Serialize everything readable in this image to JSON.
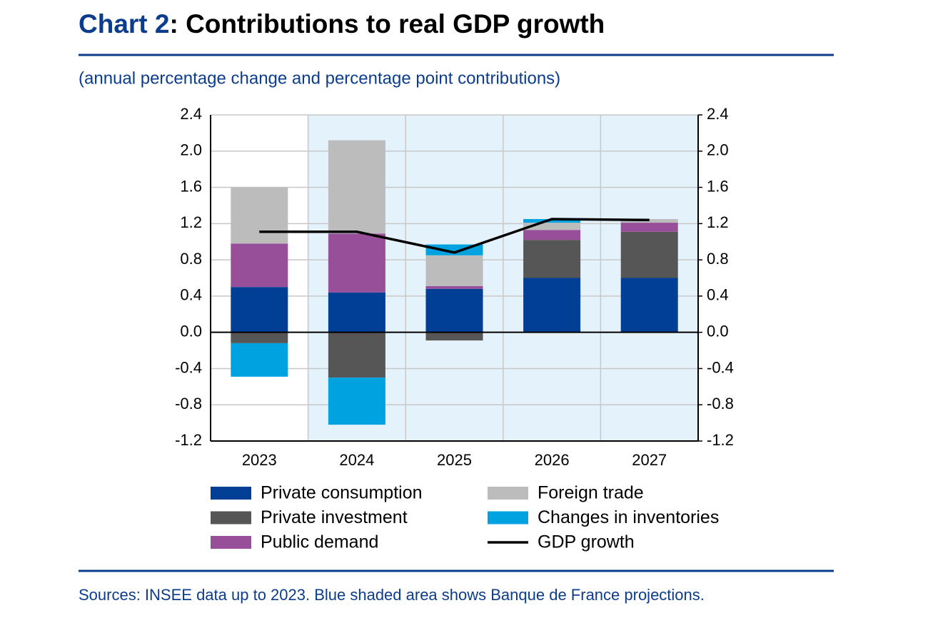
{
  "chart_data": {
    "type": "bar",
    "title_prefix": "Chart 2",
    "title": ": Contributions to real GDP growth",
    "subtitle": "(annual percentage change and percentage point contributions)",
    "source": "Sources: INSEE data up to 2023. Blue shaded area shows Banque de France projections.",
    "categories": [
      "2023",
      "2024",
      "2025",
      "2026",
      "2027"
    ],
    "series": [
      {
        "name": "Private consumption",
        "color": "#003f95",
        "values": [
          0.5,
          0.44,
          0.48,
          0.6,
          0.6
        ]
      },
      {
        "name": "Private investment",
        "color": "#565656",
        "values": [
          -0.12,
          -0.5,
          -0.09,
          0.42,
          0.51
        ]
      },
      {
        "name": "Public demand",
        "color": "#984f9a",
        "values": [
          0.48,
          0.65,
          0.03,
          0.11,
          0.1
        ]
      },
      {
        "name": "Foreign trade",
        "color": "#bcbcbc",
        "values": [
          0.62,
          1.03,
          0.34,
          0.08,
          0.04
        ]
      },
      {
        "name": "Changes in inventories",
        "color": "#00a3e0",
        "values": [
          -0.37,
          -0.52,
          0.12,
          0.04,
          0
        ]
      },
      {
        "name": "GDP growth",
        "color": "#000000",
        "type": "line",
        "values": [
          1.11,
          1.11,
          0.88,
          1.25,
          1.24
        ]
      }
    ],
    "ylim": [
      -1.2,
      2.4
    ],
    "yticks": [
      2.4,
      {
        "value": 2,
        "label": "2.0"
      },
      1.6,
      1.2,
      0.8,
      0.4,
      {
        "value": 0,
        "label": "0.0"
      },
      -0.4,
      -0.8,
      -1.2
    ],
    "y2lim": [
      -1.2,
      2.4
    ],
    "y2ticks": [
      2.4,
      {
        "value": 2,
        "label": "2.0"
      },
      1.6,
      1.2,
      0.8,
      0.4,
      {
        "value": 0,
        "label": "0.0"
      },
      -0.4,
      -0.8,
      -1.2
    ],
    "grid": true,
    "legend": "bottom"
  }
}
